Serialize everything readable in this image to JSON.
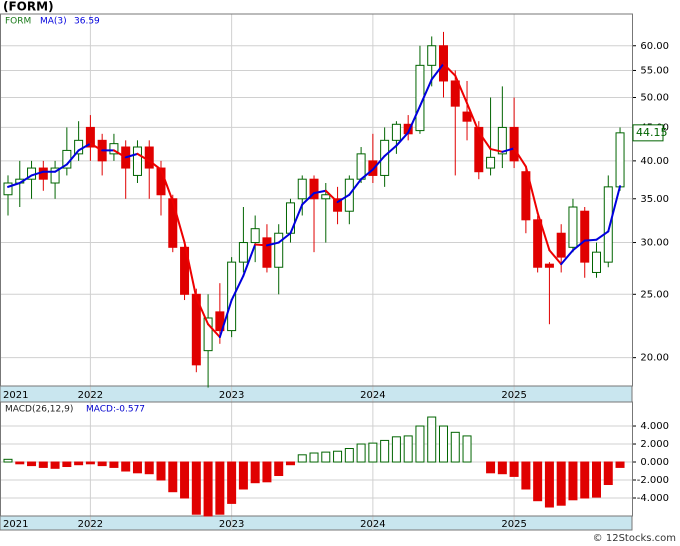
{
  "chart_data": [
    {
      "type": "candlestick",
      "title": "(FORM)",
      "symbol": "FORM",
      "log_scale": true,
      "grid": true,
      "categories": [
        "2021",
        null,
        null,
        null,
        null,
        null,
        null,
        "2022",
        null,
        null,
        null,
        null,
        null,
        null,
        null,
        null,
        null,
        null,
        null,
        "2023",
        null,
        null,
        null,
        null,
        null,
        null,
        null,
        null,
        null,
        null,
        null,
        "2024",
        null,
        null,
        null,
        null,
        null,
        null,
        null,
        null,
        null,
        null,
        null,
        "2025",
        null,
        null,
        null,
        null,
        null,
        null,
        null,
        null,
        null
      ],
      "open": [
        35.5,
        37,
        37.5,
        39,
        37,
        39,
        41,
        45,
        43,
        41,
        42,
        38,
        42,
        39,
        35,
        29.5,
        25,
        20.5,
        23.5,
        22,
        28,
        30,
        30.5,
        27.5,
        31,
        35,
        37.5,
        35,
        35,
        33.5,
        37.5,
        40,
        38,
        43,
        45.5,
        44.5,
        56,
        60,
        53,
        47.5,
        45,
        39,
        41,
        45,
        38.5,
        32.5,
        27.8,
        31,
        29.5,
        33.5,
        27,
        28,
        36.5
      ],
      "high": [
        38,
        40,
        40,
        40,
        40,
        45,
        46,
        47,
        44,
        44,
        43,
        43,
        43,
        40,
        35.5,
        30,
        25.5,
        25,
        26,
        28.5,
        34,
        33,
        32,
        32,
        35,
        38,
        38,
        37,
        36.5,
        38,
        42,
        44,
        45,
        46,
        47,
        60,
        62,
        63,
        55,
        53,
        46,
        50,
        52,
        50,
        39,
        33,
        28,
        32,
        35,
        34,
        30,
        38,
        45
      ],
      "low": [
        33,
        34,
        35,
        36,
        35,
        38,
        40,
        40,
        38,
        40,
        35,
        37,
        35,
        33,
        29,
        24.5,
        19,
        18,
        21,
        21.5,
        27,
        28,
        27,
        25,
        30,
        33,
        29,
        30,
        32,
        32,
        37,
        37,
        36.5,
        41,
        43,
        44,
        52,
        50,
        38,
        43,
        37.5,
        38,
        39,
        39,
        31,
        27,
        22.5,
        27,
        29,
        26.5,
        26.5,
        27.5,
        36
      ],
      "close": [
        37,
        37.5,
        39,
        37.5,
        39,
        41.5,
        43,
        42,
        40,
        42.5,
        39,
        42,
        39,
        35.5,
        29.5,
        25,
        19.5,
        23,
        22,
        28,
        30,
        31.5,
        27.5,
        31,
        34.5,
        37.5,
        35,
        35.5,
        33.5,
        37.5,
        41,
        38,
        43,
        45.5,
        44,
        56,
        60,
        53,
        48.5,
        46,
        38.5,
        40.5,
        45,
        40,
        32.5,
        27.5,
        27.5,
        28.5,
        34,
        28,
        29,
        36.5,
        44.15
      ],
      "last_price_label": "44.15",
      "up_color": "#006400",
      "down_color": "#e00000",
      "ma": {
        "name": "MA(3)",
        "value_label": "36.59",
        "up_color": "#0000dd",
        "down_color": "#ee0000",
        "values": [
          36.5,
          37,
          38,
          38.5,
          38.5,
          39.5,
          41.5,
          42.5,
          41.5,
          41.5,
          40.5,
          41,
          40,
          38.8,
          34.7,
          30,
          24.7,
          22.5,
          21.5,
          24.5,
          26.7,
          29.8,
          29.7,
          30,
          31,
          34.3,
          35.7,
          36,
          34.6,
          35.5,
          37.5,
          38.8,
          40.7,
          42.2,
          44.2,
          48.5,
          53.3,
          56.3,
          54,
          49,
          44.3,
          41.7,
          41.3,
          41.8,
          39.2,
          33.3,
          29.2,
          27.8,
          29.2,
          30.2,
          30.3,
          31.2,
          36.59
        ]
      },
      "ylim": [
        18.1,
        67.1
      ],
      "yticks": [
        {
          "value": 20,
          "label": "20.00"
        },
        {
          "value": 25,
          "label": "25.00"
        },
        {
          "value": 30,
          "label": "30.00"
        },
        {
          "value": 35,
          "label": "35.00"
        },
        {
          "value": 40,
          "label": "40.00"
        },
        {
          "value": 45,
          "label": "45.00"
        },
        {
          "value": 50,
          "label": "50.00"
        },
        {
          "value": 55,
          "label": "55.00"
        },
        {
          "value": 60,
          "label": "60.00"
        }
      ]
    },
    {
      "type": "bar",
      "title": "MACD(26,12,9)",
      "value_text": "MACD:-0.577",
      "grid": true,
      "categories": [
        "2021",
        null,
        null,
        null,
        null,
        null,
        null,
        "2022",
        null,
        null,
        null,
        null,
        null,
        null,
        null,
        null,
        null,
        null,
        null,
        "2023",
        null,
        null,
        null,
        null,
        null,
        null,
        null,
        null,
        null,
        null,
        null,
        "2024",
        null,
        null,
        null,
        null,
        null,
        null,
        null,
        null,
        null,
        null,
        null,
        "2025",
        null,
        null,
        null,
        null,
        null,
        null,
        null,
        null,
        null
      ],
      "values": [
        0.3,
        -0.2,
        -0.4,
        -0.6,
        -0.7,
        -0.5,
        -0.3,
        -0.2,
        -0.4,
        -0.6,
        -1.0,
        -1.2,
        -1.3,
        -2.0,
        -3.3,
        -4.0,
        -5.8,
        -6.0,
        -5.8,
        -4.6,
        -3.0,
        -2.3,
        -2.2,
        -1.5,
        -0.3,
        0.8,
        1.0,
        1.1,
        1.2,
        1.5,
        2.0,
        2.1,
        2.4,
        2.8,
        2.9,
        4.0,
        5.0,
        4.0,
        3.3,
        2.9,
        0,
        -1.2,
        -1.3,
        -1.6,
        -3.0,
        -4.3,
        -5.0,
        -4.8,
        -4.2,
        -4.0,
        -3.9,
        -2.5,
        -0.6
      ],
      "pos_color": "#006400",
      "neg_color": "#e00000",
      "ylim": [
        -6,
        6.67
      ],
      "yticks": [
        {
          "value": -4,
          "label": "-4.000"
        },
        {
          "value": -2,
          "label": "-2.000"
        },
        {
          "value": 0,
          "label": "0.000"
        },
        {
          "value": 2,
          "label": "2.000"
        },
        {
          "value": 4,
          "label": "4.000"
        }
      ]
    }
  ],
  "footer": "© 12Stocks.com"
}
